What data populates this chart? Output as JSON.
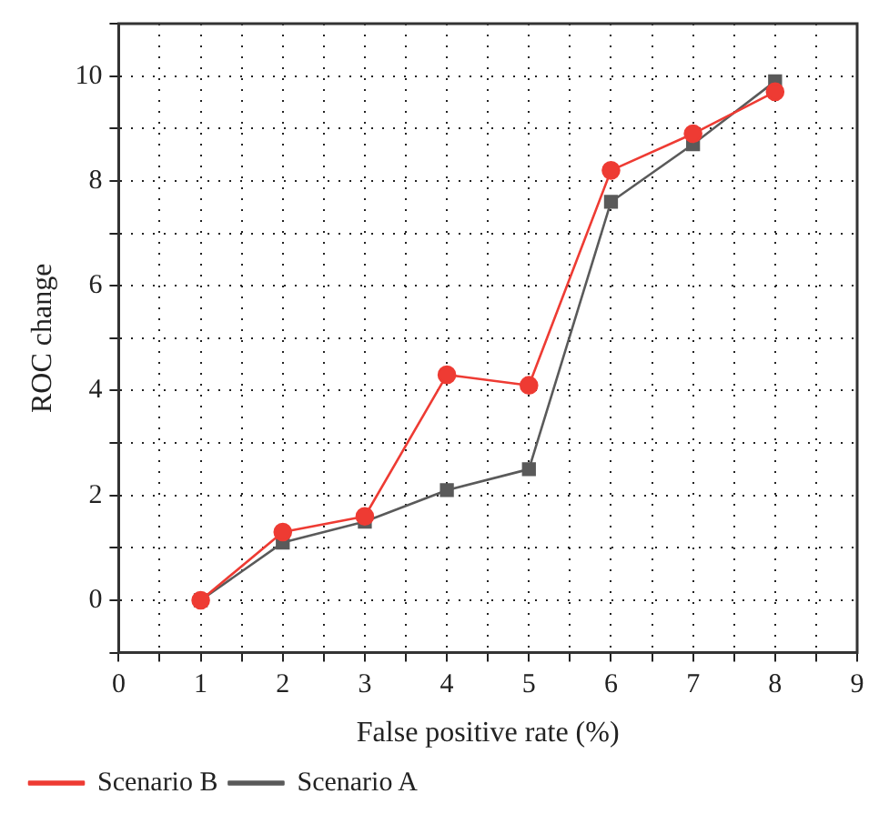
{
  "chart_data": {
    "type": "line",
    "xlabel": "False positive rate (%)",
    "ylabel": "ROC change",
    "x": [
      1,
      2,
      3,
      4,
      5,
      6,
      7,
      8
    ],
    "series": [
      {
        "name": "Scenario A",
        "color": "#5a5a5a",
        "marker": "square",
        "values": [
          0,
          1.1,
          1.5,
          2.1,
          2.5,
          7.6,
          8.7,
          9.9
        ]
      },
      {
        "name": "Scenario B",
        "color": "#ee3b33",
        "marker": "circle",
        "values": [
          0,
          1.3,
          1.6,
          4.3,
          4.1,
          8.2,
          8.9,
          9.7
        ]
      }
    ],
    "xlim": [
      0,
      9
    ],
    "xticks": [
      0,
      {
        "value": 0.5,
        "label": null
      },
      1,
      {
        "value": 1.5,
        "label": null
      },
      2,
      {
        "value": 2.5,
        "label": null
      },
      3,
      {
        "value": 3.5,
        "label": null
      },
      4,
      {
        "value": 4.5,
        "label": null
      },
      5,
      {
        "value": 5.5,
        "label": null
      },
      6,
      {
        "value": 6.5,
        "label": null
      },
      7,
      {
        "value": 7.5,
        "label": null
      },
      8,
      {
        "value": 8.5,
        "label": null
      },
      9
    ],
    "ylim": [
      -1,
      11
    ],
    "yticks": [
      {
        "value": -1,
        "label": null
      },
      0,
      {
        "value": 1,
        "label": null
      },
      2,
      {
        "value": 3,
        "label": null
      },
      4,
      {
        "value": 5,
        "label": null
      },
      6,
      {
        "value": 7,
        "label": null
      },
      8,
      {
        "value": 9,
        "label": null
      },
      10,
      {
        "value": 11,
        "label": null
      }
    ],
    "grid": true,
    "legend": "bottom left",
    "line_style": "solid"
  }
}
